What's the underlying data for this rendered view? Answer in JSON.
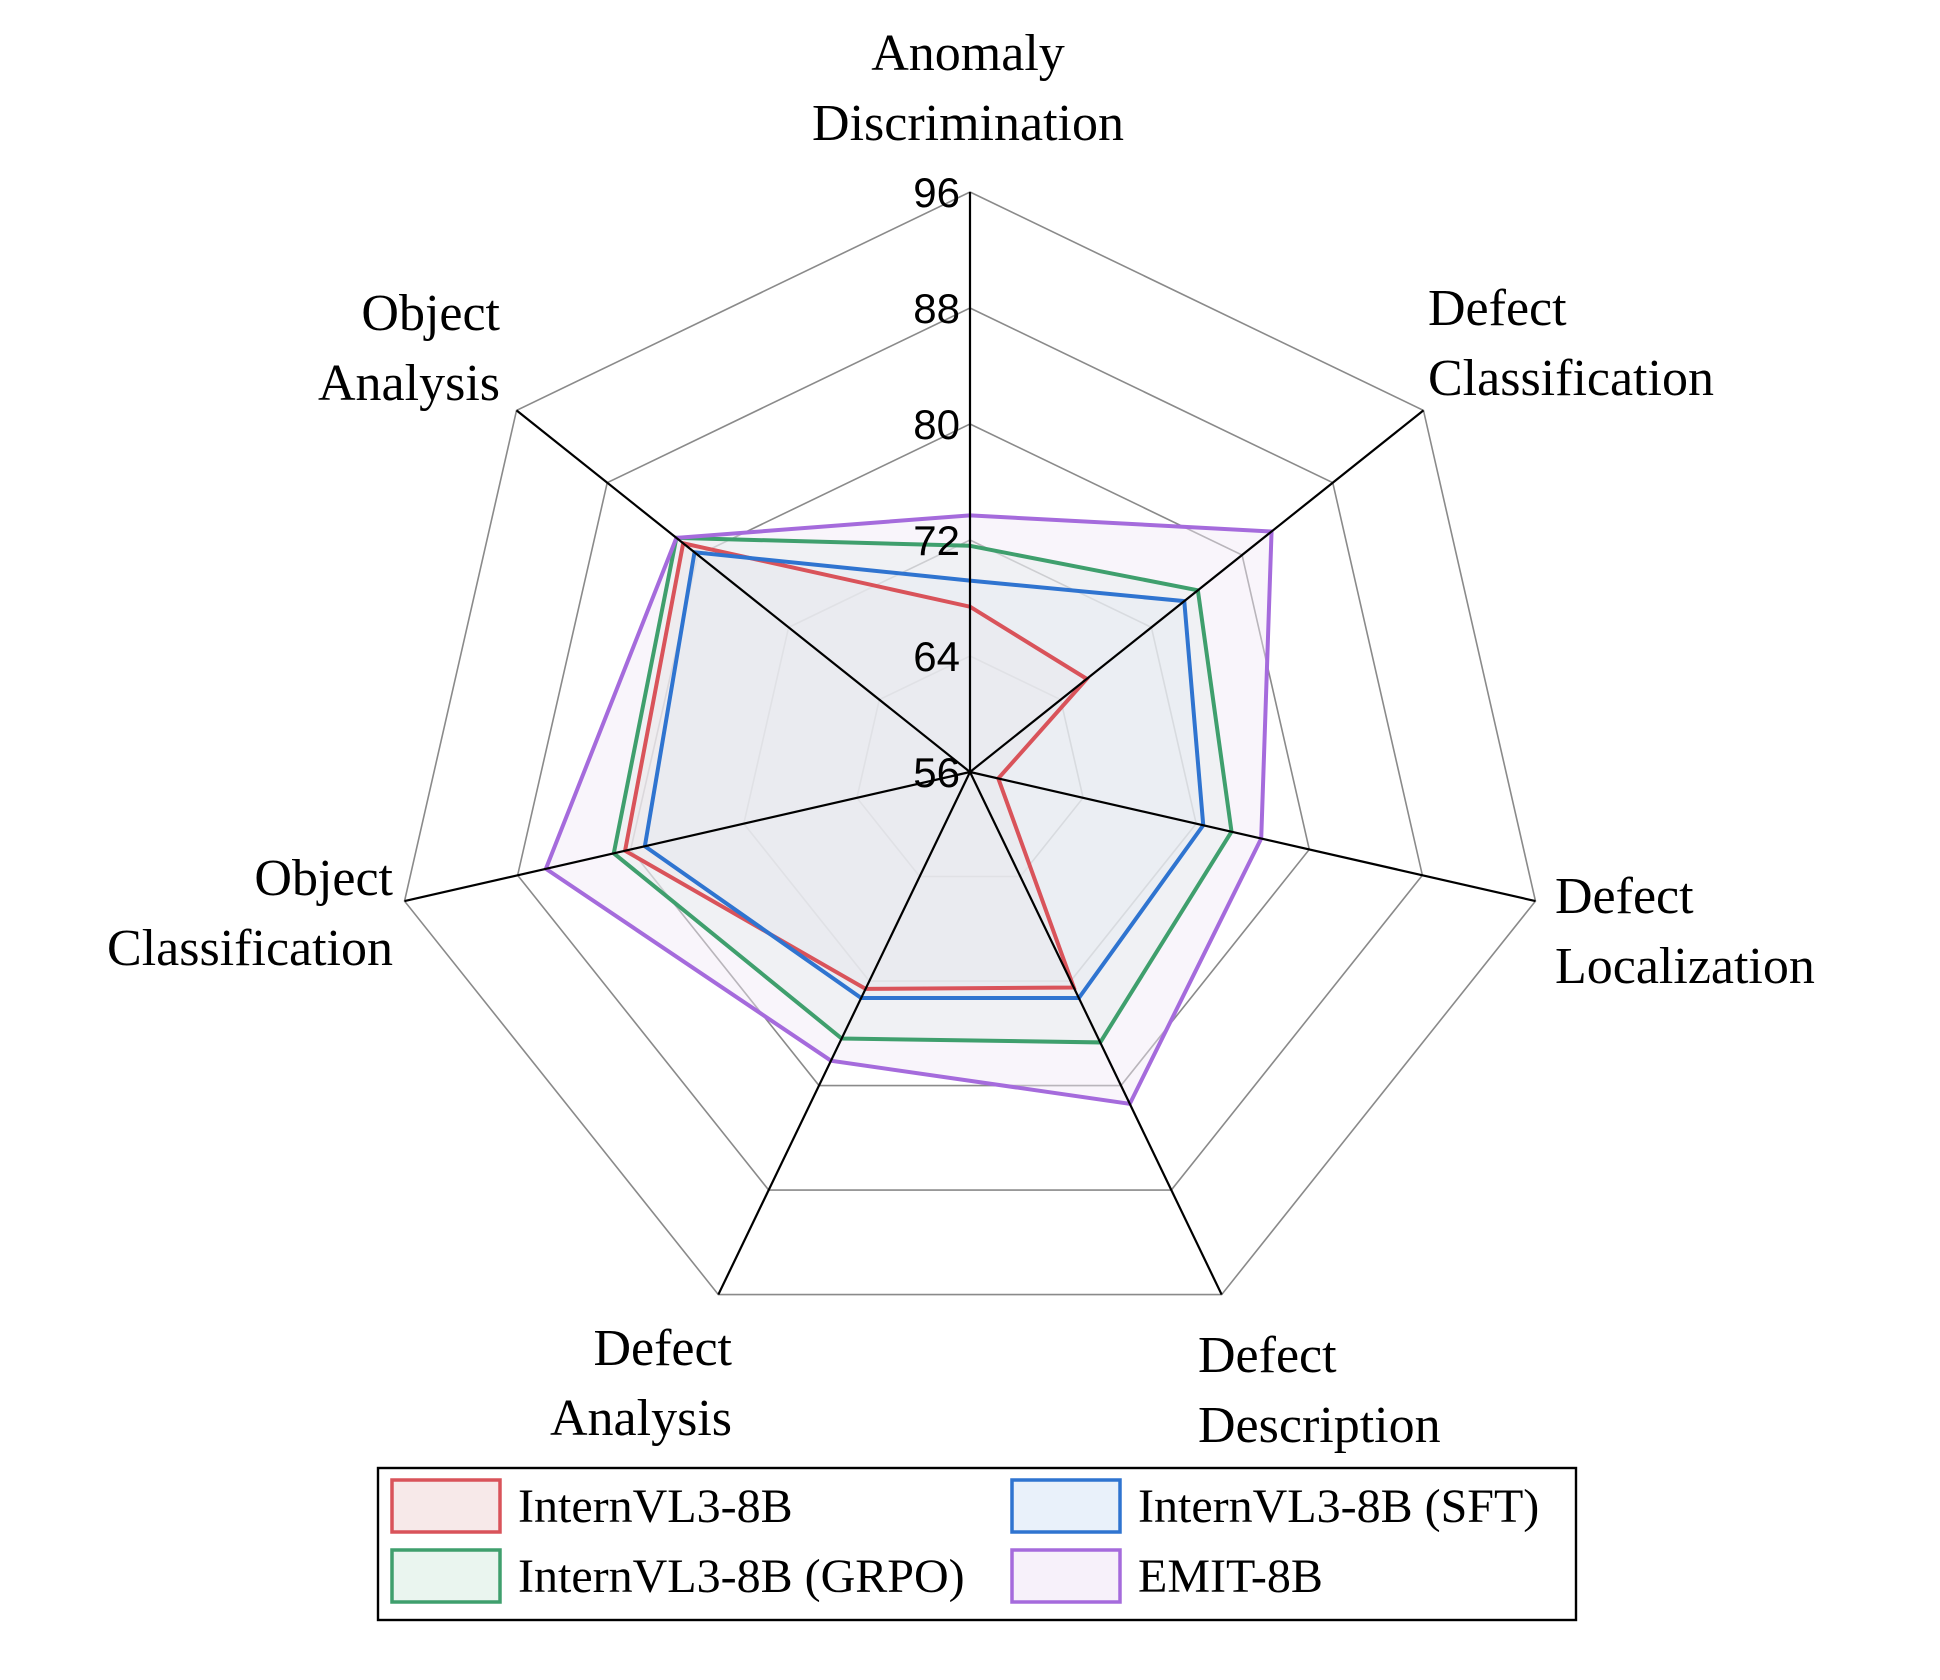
{
  "chart_data": {
    "type": "radar",
    "axes": [
      {
        "line1": "Anomaly",
        "line2": "Discrimination"
      },
      {
        "line1": "Defect",
        "line2": "Classification"
      },
      {
        "line1": "Defect",
        "line2": "Localization"
      },
      {
        "line1": "Defect",
        "line2": "Description"
      },
      {
        "line1": "Defect",
        "line2": "Analysis"
      },
      {
        "line1": "Object",
        "line2": "Classification"
      },
      {
        "line1": "Object",
        "line2": "Analysis"
      }
    ],
    "range": [
      56,
      96
    ],
    "ticks": [
      "56",
      "64",
      "72",
      "80",
      "88",
      "96"
    ],
    "tick_values": [
      56,
      64,
      72,
      80,
      88,
      96
    ],
    "grid": true,
    "legend_position": "bottom",
    "series": [
      {
        "name": "InternVL3-8B",
        "color": "#d9535a",
        "fill": "#f2dada",
        "values": [
          67.4,
          66.3,
          58.0,
          72.5,
          72.6,
          80.4,
          81.3
        ]
      },
      {
        "name": "InternVL3-8B (SFT)",
        "color": "#2f74d0",
        "fill": "#dbe8f6",
        "values": [
          69.2,
          74.9,
          72.5,
          73.3,
          73.3,
          79.0,
          80.3
        ]
      },
      {
        "name": "InternVL3-8B (GRPO)",
        "color": "#3f9f6d",
        "fill": "#dcefe4",
        "values": [
          71.6,
          76.1,
          74.5,
          76.7,
          76.4,
          81.2,
          81.9
        ]
      },
      {
        "name": "EMIT-8B",
        "color": "#a56bdc",
        "fill": "#f1e8f7",
        "values": [
          73.7,
          82.6,
          76.6,
          81.4,
          78.1,
          86.0,
          81.9
        ]
      }
    ],
    "legend_order": [
      0,
      1,
      2,
      3
    ]
  }
}
